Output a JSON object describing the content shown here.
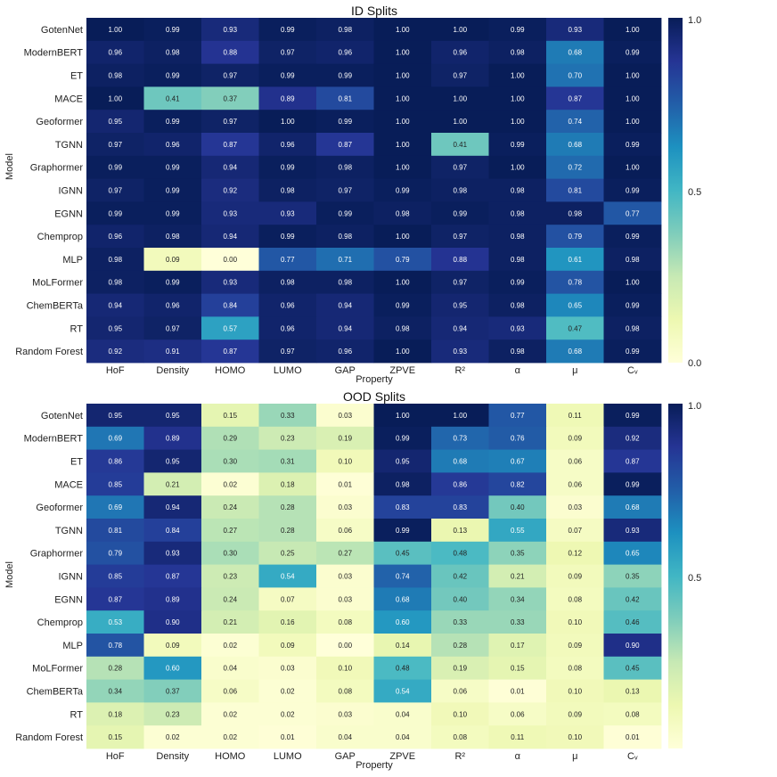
{
  "chart_data": [
    {
      "type": "heatmap",
      "title": "ID Splits",
      "xlabel": "Property",
      "ylabel": "Model",
      "colormap": "YlGnBu",
      "vmin": 0.0,
      "vmax": 1.0,
      "colorbar_ticks": [
        "1.0",
        "0.5",
        "0.0"
      ],
      "columns": [
        "HoF",
        "Density",
        "HOMO",
        "LUMO",
        "GAP",
        "ZPVE",
        "R²",
        "α",
        "μ",
        "Cᵥ"
      ],
      "rows": [
        "GotenNet",
        "ModernBERT",
        "ET",
        "MACE",
        "Geoformer",
        "TGNN",
        "Graphormer",
        "IGNN",
        "EGNN",
        "Chemprop",
        "MLP",
        "MoLFormer",
        "ChemBERTa",
        "RT",
        "Random Forest"
      ],
      "values": [
        [
          1.0,
          0.99,
          0.93,
          0.99,
          0.98,
          1.0,
          1.0,
          0.99,
          0.93,
          1.0
        ],
        [
          0.96,
          0.98,
          0.88,
          0.97,
          0.96,
          1.0,
          0.96,
          0.98,
          0.68,
          0.99
        ],
        [
          0.98,
          0.99,
          0.97,
          0.99,
          0.99,
          1.0,
          0.97,
          1.0,
          0.7,
          1.0
        ],
        [
          1.0,
          0.41,
          0.37,
          0.89,
          0.81,
          1.0,
          1.0,
          1.0,
          0.87,
          1.0
        ],
        [
          0.95,
          0.99,
          0.97,
          1.0,
          0.99,
          1.0,
          1.0,
          1.0,
          0.74,
          1.0
        ],
        [
          0.97,
          0.96,
          0.87,
          0.96,
          0.87,
          1.0,
          0.41,
          0.99,
          0.68,
          0.99
        ],
        [
          0.99,
          0.99,
          0.94,
          0.99,
          0.98,
          1.0,
          0.97,
          1.0,
          0.72,
          1.0
        ],
        [
          0.97,
          0.99,
          0.92,
          0.98,
          0.97,
          0.99,
          0.98,
          0.98,
          0.81,
          0.99
        ],
        [
          0.99,
          0.99,
          0.93,
          0.93,
          0.99,
          0.98,
          0.99,
          0.98,
          0.98,
          0.77
        ],
        [
          0.96,
          0.98,
          0.94,
          0.99,
          0.98,
          1.0,
          0.97,
          0.98,
          0.79,
          0.99
        ],
        [
          0.98,
          0.09,
          0.0,
          0.77,
          0.71,
          0.79,
          0.88,
          0.98,
          0.61,
          0.98
        ],
        [
          0.98,
          0.99,
          0.93,
          0.98,
          0.98,
          1.0,
          0.97,
          0.99,
          0.78,
          1.0
        ],
        [
          0.94,
          0.96,
          0.84,
          0.96,
          0.94,
          0.99,
          0.95,
          0.98,
          0.65,
          0.99
        ],
        [
          0.95,
          0.97,
          0.57,
          0.96,
          0.94,
          0.98,
          0.94,
          0.93,
          0.47,
          0.98
        ],
        [
          0.92,
          0.91,
          0.87,
          0.97,
          0.96,
          1.0,
          0.93,
          0.98,
          0.68,
          0.99
        ]
      ]
    },
    {
      "type": "heatmap",
      "title": "OOD Splits",
      "xlabel": "Property",
      "ylabel": "Model",
      "colormap": "YlGnBu",
      "vmin": 0.0,
      "vmax": 1.0,
      "colorbar_ticks": [
        "1.0",
        "0.5"
      ],
      "columns": [
        "HoF",
        "Density",
        "HOMO",
        "LUMO",
        "GAP",
        "ZPVE",
        "R²",
        "α",
        "μ",
        "Cᵥ"
      ],
      "rows": [
        "GotenNet",
        "ModernBERT",
        "ET",
        "MACE",
        "Geoformer",
        "TGNN",
        "Graphormer",
        "IGNN",
        "EGNN",
        "Chemprop",
        "MLP",
        "MoLFormer",
        "ChemBERTa",
        "RT",
        "Random Forest"
      ],
      "values": [
        [
          0.95,
          0.95,
          0.15,
          0.33,
          0.03,
          1.0,
          1.0,
          0.77,
          0.11,
          0.99
        ],
        [
          0.69,
          0.89,
          0.29,
          0.23,
          0.19,
          0.99,
          0.73,
          0.76,
          0.09,
          0.92
        ],
        [
          0.86,
          0.95,
          0.3,
          0.31,
          0.1,
          0.95,
          0.68,
          0.67,
          0.06,
          0.87
        ],
        [
          0.85,
          0.21,
          0.02,
          0.18,
          0.01,
          0.98,
          0.86,
          0.82,
          0.06,
          0.99
        ],
        [
          0.69,
          0.94,
          0.24,
          0.28,
          0.03,
          0.83,
          0.83,
          0.4,
          0.03,
          0.68
        ],
        [
          0.81,
          0.84,
          0.27,
          0.28,
          0.06,
          0.99,
          0.13,
          0.55,
          0.07,
          0.93
        ],
        [
          0.79,
          0.93,
          0.3,
          0.25,
          0.27,
          0.45,
          0.48,
          0.35,
          0.12,
          0.65
        ],
        [
          0.85,
          0.87,
          0.23,
          0.54,
          0.03,
          0.74,
          0.42,
          0.21,
          0.09,
          0.35
        ],
        [
          0.87,
          0.89,
          0.24,
          0.07,
          0.03,
          0.68,
          0.4,
          0.34,
          0.08,
          0.42
        ],
        [
          0.53,
          0.9,
          0.21,
          0.16,
          0.08,
          0.6,
          0.33,
          0.33,
          0.1,
          0.46
        ],
        [
          0.78,
          0.09,
          0.02,
          0.09,
          0.0,
          0.14,
          0.28,
          0.17,
          0.09,
          0.9
        ],
        [
          0.28,
          0.6,
          0.04,
          0.03,
          0.1,
          0.48,
          0.19,
          0.15,
          0.08,
          0.45
        ],
        [
          0.34,
          0.37,
          0.06,
          0.02,
          0.08,
          0.54,
          0.06,
          0.01,
          0.1,
          0.13
        ],
        [
          0.18,
          0.23,
          0.02,
          0.02,
          0.03,
          0.04,
          0.1,
          0.06,
          0.09,
          0.08
        ],
        [
          0.15,
          0.02,
          0.02,
          0.01,
          0.04,
          0.04,
          0.08,
          0.11,
          0.1,
          0.01
        ]
      ]
    }
  ]
}
